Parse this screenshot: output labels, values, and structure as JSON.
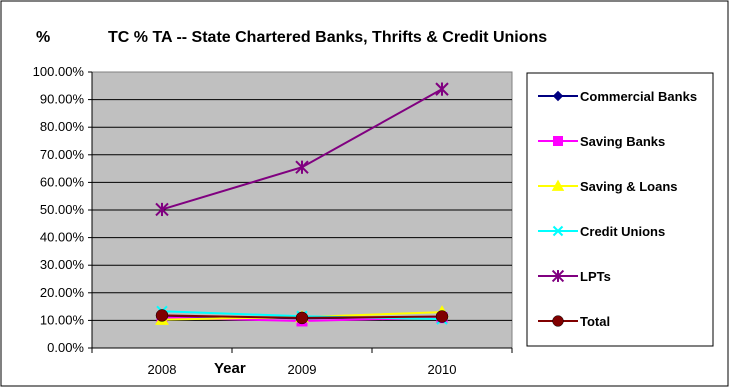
{
  "chart_data": {
    "type": "line",
    "title": "TC % TA -- State Chartered Banks, Thrifts & Credit Unions",
    "ylabel": "%",
    "xlabel": "Year",
    "categories": [
      "2008",
      "2009",
      "2010"
    ],
    "ylim": [
      0,
      100
    ],
    "y_ticks": [
      "0.00%",
      "10.00%",
      "20.00%",
      "30.00%",
      "40.00%",
      "50.00%",
      "60.00%",
      "70.00%",
      "80.00%",
      "90.00%",
      "100.00%"
    ],
    "grid": true,
    "legend_position": "right",
    "plot_background": "#c0c0c0",
    "series": [
      {
        "name": "Commercial Banks",
        "values": [
          11.5,
          10.8,
          11.2
        ],
        "color": "#000080",
        "marker": "diamond"
      },
      {
        "name": "Saving Banks",
        "values": [
          11.0,
          9.8,
          11.0
        ],
        "color": "#ff00ff",
        "marker": "square"
      },
      {
        "name": "Saving & Loans",
        "values": [
          10.3,
          11.2,
          13.0
        ],
        "color": "#ffff00",
        "marker": "triangle"
      },
      {
        "name": "Credit Unions",
        "values": [
          13.3,
          11.5,
          10.5
        ],
        "color": "#00ffff",
        "marker": "x"
      },
      {
        "name": "LPTs",
        "values": [
          50.2,
          65.5,
          93.8
        ],
        "color": "#800080",
        "marker": "star"
      },
      {
        "name": "Total",
        "values": [
          11.8,
          10.9,
          11.4
        ],
        "color": "#800000",
        "marker": "circle"
      }
    ]
  }
}
